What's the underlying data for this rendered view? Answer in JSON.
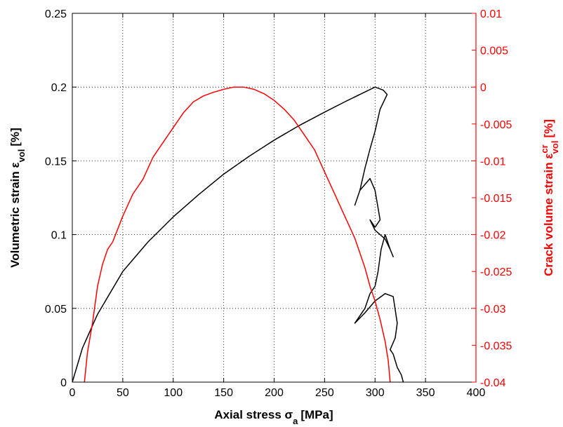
{
  "chart_data": {
    "type": "line",
    "xlabel": {
      "main": "Axial stress σ",
      "sub": "a",
      "unit": "[MPa]"
    },
    "ylabel_left": {
      "main": "Volumetric strain ε",
      "sub": "vol",
      "unit": "[%]"
    },
    "ylabel_right": {
      "main": "Crack volume strain ε",
      "sup": "cr",
      "sub": "vol",
      "unit": "[%]"
    },
    "xlim": [
      0,
      400
    ],
    "ylim_left": [
      0,
      0.25
    ],
    "ylim_right": [
      -0.04,
      0.01
    ],
    "x_ticks": [
      "0",
      "50",
      "100",
      "150",
      "200",
      "250",
      "300",
      "350",
      "400"
    ],
    "y_left_ticks": [
      "0",
      "0.05",
      "0.1",
      "0.15",
      "0.2",
      "0.25"
    ],
    "y_right_ticks": [
      "-0.04",
      "-0.035",
      "-0.03",
      "-0.025",
      "-0.02",
      "-0.015",
      "-0.01",
      "-0.005",
      "0",
      "0.005",
      "0.01"
    ],
    "grid": true,
    "colors": {
      "left_series": "#000000",
      "right_series": "#ff0000",
      "right_axis": "#ff0000"
    },
    "series": [
      {
        "axis": "left",
        "color": "#000000",
        "x": [
          0,
          10,
          25,
          50,
          75,
          100,
          125,
          150,
          175,
          200,
          225,
          250,
          270,
          285,
          300,
          308,
          312,
          305,
          300,
          295,
          290,
          285,
          280,
          285,
          295,
          300,
          305,
          300,
          295,
          300,
          310,
          315,
          318,
          315,
          310,
          306,
          303,
          300,
          295,
          290,
          285,
          280,
          290,
          300,
          310,
          318,
          322,
          320,
          315,
          318,
          322,
          326,
          328
        ],
        "y": [
          0,
          0.023,
          0.046,
          0.075,
          0.095,
          0.112,
          0.127,
          0.141,
          0.153,
          0.164,
          0.174,
          0.183,
          0.19,
          0.195,
          0.2,
          0.198,
          0.195,
          0.185,
          0.17,
          0.158,
          0.145,
          0.13,
          0.12,
          0.13,
          0.138,
          0.13,
          0.11,
          0.105,
          0.11,
          0.103,
          0.097,
          0.09,
          0.085,
          0.09,
          0.1,
          0.09,
          0.075,
          0.065,
          0.06,
          0.05,
          0.045,
          0.04,
          0.047,
          0.055,
          0.06,
          0.058,
          0.04,
          0.03,
          0.022,
          0.019,
          0.01,
          0.005,
          0.0
        ]
      },
      {
        "axis": "right",
        "color": "#ff0000",
        "x": [
          12,
          15,
          20,
          25,
          30,
          35,
          40,
          50,
          60,
          70,
          80,
          90,
          100,
          110,
          120,
          130,
          140,
          150,
          160,
          170,
          180,
          190,
          200,
          210,
          220,
          230,
          240,
          250,
          260,
          270,
          280,
          285,
          290,
          295,
          300,
          305,
          310,
          313,
          315
        ],
        "y": [
          -0.04,
          -0.036,
          -0.032,
          -0.027,
          -0.024,
          -0.022,
          -0.021,
          -0.0175,
          -0.0145,
          -0.0125,
          -0.0095,
          -0.0075,
          -0.0055,
          -0.0035,
          -0.002,
          -0.0012,
          -0.0007,
          -0.0003,
          0.0,
          0.0,
          -0.0003,
          -0.0009,
          -0.0018,
          -0.003,
          -0.0045,
          -0.0065,
          -0.0085,
          -0.0115,
          -0.0145,
          -0.0175,
          -0.0205,
          -0.0225,
          -0.0245,
          -0.027,
          -0.029,
          -0.0315,
          -0.0345,
          -0.037,
          -0.04
        ]
      }
    ]
  }
}
